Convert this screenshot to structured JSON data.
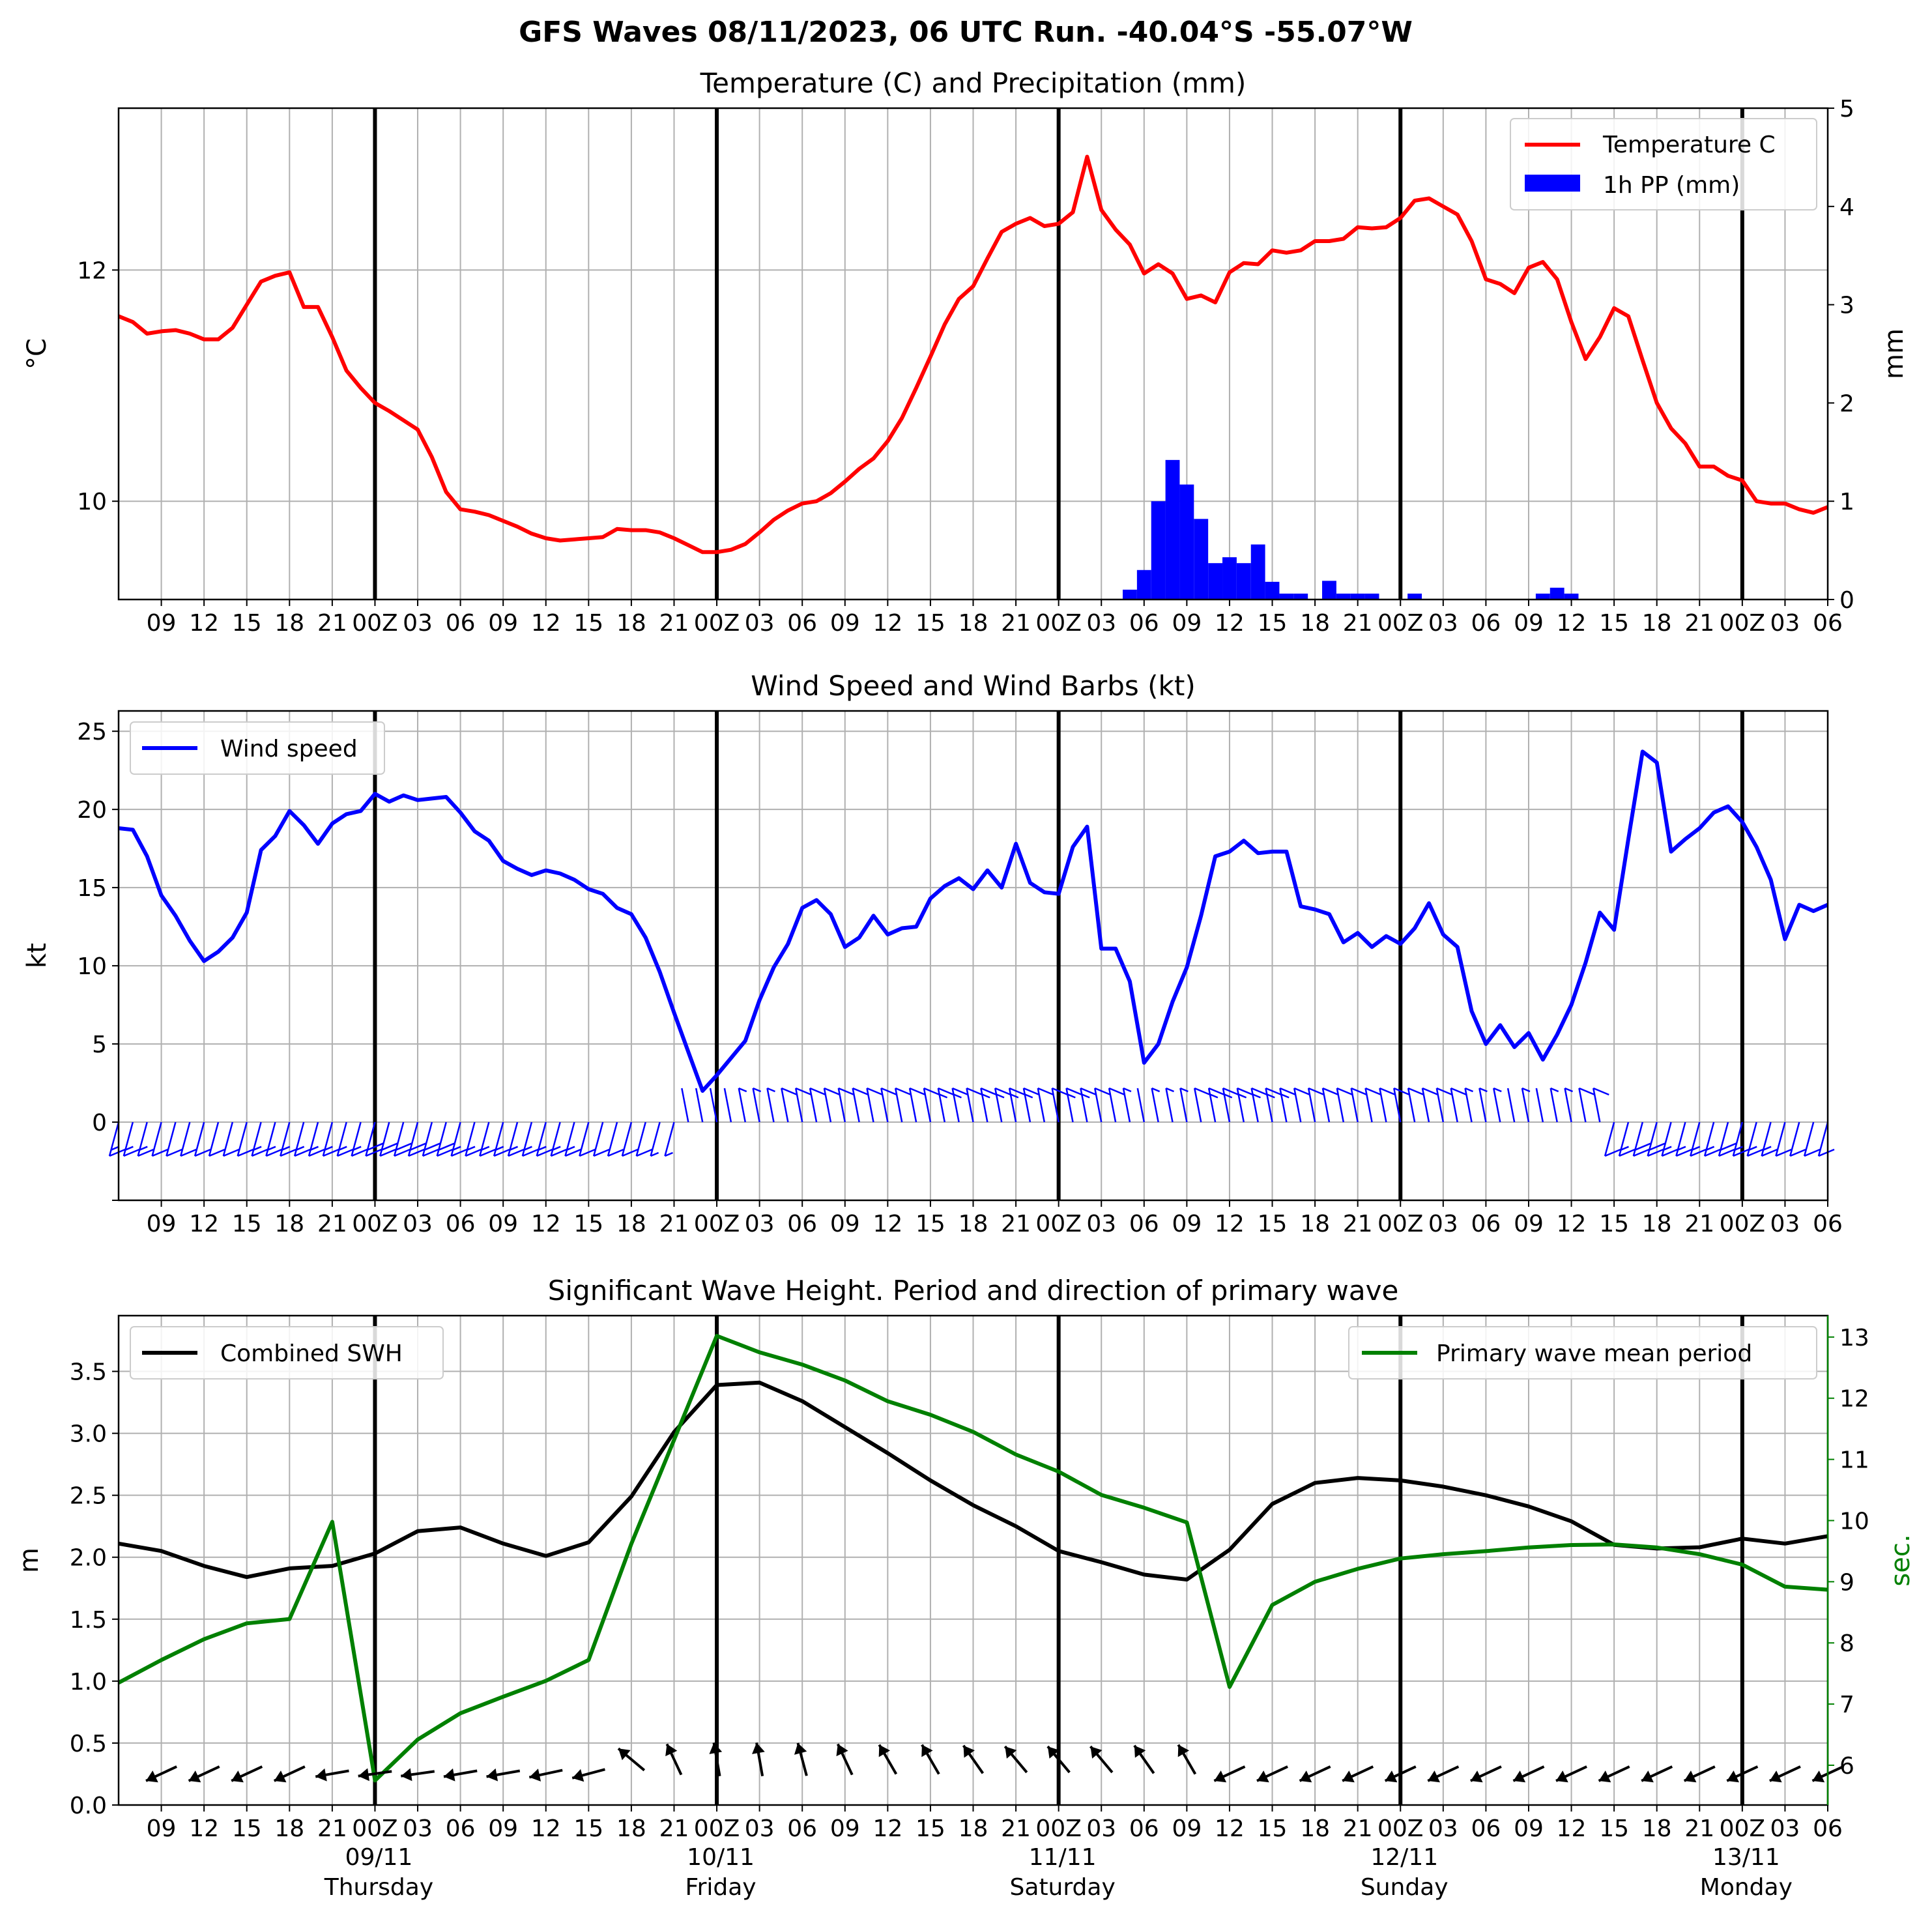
{
  "suptitle": "GFS Waves 08/11/2023, 06 UTC Run. -40.04°S -55.07°W",
  "hour_tick_labels": [
    "09",
    "12",
    "15",
    "18",
    "21",
    "00Z",
    "03",
    "06",
    "09",
    "12",
    "15",
    "18",
    "21",
    "00Z",
    "03",
    "06",
    "09",
    "12",
    "15",
    "18",
    "21",
    "00Z",
    "03",
    "06",
    "09",
    "12",
    "15",
    "18",
    "21",
    "00Z",
    "03",
    "06",
    "09",
    "12",
    "15",
    "18",
    "21",
    "00Z",
    "03",
    "06"
  ],
  "day_labels": [
    {
      "date": "09/11",
      "day": "Thursday"
    },
    {
      "date": "10/11",
      "day": "Friday"
    },
    {
      "date": "11/11",
      "day": "Saturday"
    },
    {
      "date": "12/11",
      "day": "Sunday"
    },
    {
      "date": "13/11",
      "day": "Monday"
    }
  ],
  "chart_data": [
    {
      "type": "line",
      "title": "Temperature (C) and Precipitation (mm)",
      "xlabel": "",
      "ylabel": "°C",
      "y2label": "mm",
      "x_unit": "hours since 08/11/2023 06 UTC",
      "xlim": [
        0,
        120
      ],
      "ylim": [
        9.15,
        13.4
      ],
      "y2lim": [
        0,
        5
      ],
      "yticks": [
        10,
        12
      ],
      "y2ticks": [
        0,
        1,
        2,
        3,
        4,
        5
      ],
      "legend_position": "top-right",
      "grid": true,
      "colors": {
        "temperature": "#ff0000",
        "precip": "#0000ff"
      },
      "series": [
        {
          "name": "Temperature C",
          "kind": "line",
          "x": [
            0,
            1,
            2,
            3,
            4,
            5,
            6,
            7,
            8,
            9,
            10,
            11,
            12,
            13,
            14,
            15,
            16,
            17,
            18,
            19,
            20,
            21,
            22,
            23,
            24,
            25,
            26,
            27,
            28,
            29,
            30,
            31,
            32,
            33,
            34,
            35,
            36,
            37,
            38,
            39,
            40,
            41,
            42,
            43,
            44,
            45,
            46,
            47,
            48,
            49,
            50,
            51,
            52,
            53,
            54,
            55,
            56,
            57,
            58,
            59,
            60,
            61,
            62,
            63,
            64,
            65,
            66,
            67,
            68,
            69,
            70,
            71,
            72,
            73,
            74,
            75,
            76,
            77,
            78,
            79,
            80,
            81,
            82,
            83,
            84,
            85,
            86,
            87,
            88,
            89,
            90,
            91,
            92,
            93,
            94,
            95,
            96,
            97,
            98,
            99,
            100,
            101,
            102,
            103,
            104,
            105,
            106,
            107,
            108,
            109,
            110,
            111,
            112,
            113,
            114,
            115,
            116,
            117,
            118,
            119,
            120
          ],
          "values": [
            11.6,
            11.55,
            11.45,
            11.47,
            11.48,
            11.45,
            11.4,
            11.4,
            11.5,
            11.7,
            11.9,
            11.95,
            11.98,
            11.68,
            11.68,
            11.42,
            11.13,
            10.98,
            10.85,
            10.78,
            10.7,
            10.62,
            10.38,
            10.08,
            9.93,
            9.91,
            9.88,
            9.83,
            9.78,
            9.72,
            9.68,
            9.66,
            9.67,
            9.68,
            9.69,
            9.76,
            9.75,
            9.75,
            9.73,
            9.68,
            9.62,
            9.56,
            9.56,
            9.58,
            9.63,
            9.73,
            9.84,
            9.92,
            9.98,
            10.0,
            10.07,
            10.17,
            10.28,
            10.37,
            10.52,
            10.72,
            10.98,
            11.25,
            11.53,
            11.75,
            11.86,
            12.1,
            12.33,
            12.4,
            12.45,
            12.38,
            12.4,
            12.5,
            12.98,
            12.52,
            12.35,
            12.22,
            11.97,
            12.05,
            11.97,
            11.75,
            11.78,
            11.72,
            11.98,
            12.06,
            12.05,
            12.17,
            12.15,
            12.17,
            12.25,
            12.25,
            12.27,
            12.37,
            12.36,
            12.37,
            12.45,
            12.6,
            12.62,
            12.55,
            12.48,
            12.25,
            11.92,
            11.88,
            11.8,
            12.02,
            12.07,
            11.92,
            11.55,
            11.23,
            11.42,
            11.67,
            11.6,
            11.22,
            10.85,
            10.63,
            10.5,
            10.3,
            10.3,
            10.22,
            10.18,
            10.0,
            9.98,
            9.98,
            9.93,
            9.9,
            9.95
          ]
        },
        {
          "name": "1h PP (mm)",
          "kind": "bar",
          "axis": "right",
          "x": [
            71,
            72,
            73,
            74,
            75,
            76,
            77,
            78,
            79,
            80,
            81,
            82,
            83,
            84,
            85,
            86,
            87,
            88,
            89,
            90,
            91,
            92,
            93,
            94,
            95,
            96,
            97,
            98,
            99,
            100,
            101,
            102,
            103,
            104,
            105,
            106,
            107,
            108,
            109,
            110,
            111,
            112,
            113,
            114,
            115,
            116,
            117,
            118,
            119,
            120
          ],
          "values": [
            0.1,
            0.3,
            1.0,
            1.42,
            1.17,
            0.82,
            0.37,
            0.43,
            0.37,
            0.56,
            0.18,
            0.06,
            0.06,
            0.0,
            0.19,
            0.06,
            0.06,
            0.06,
            0.0,
            0.0,
            0.06,
            0.0,
            0.0,
            0.0,
            0.0,
            0.0,
            0.0,
            0.0,
            0.0,
            0.06,
            0.12,
            0.06,
            0.0,
            0.0,
            0.0,
            0.0,
            0.0,
            0.0,
            0.0,
            0.0,
            0.0,
            0.0,
            0.0,
            0.0,
            0.0,
            0.0,
            0.0,
            0.0,
            0.0,
            0.0
          ]
        }
      ]
    },
    {
      "type": "line",
      "title": "Wind Speed and Wind Barbs (kt)",
      "xlabel": "",
      "ylabel": "kt",
      "x_unit": "hours since 08/11/2023 06 UTC",
      "xlim": [
        0,
        120
      ],
      "ylim": [
        -5,
        26.3
      ],
      "yticks": [
        0,
        5,
        10,
        15,
        20,
        25
      ],
      "legend_position": "top-left",
      "grid": true,
      "colors": {
        "wind": "#0000ff"
      },
      "series": [
        {
          "name": "Wind speed",
          "x": [
            0,
            1,
            2,
            3,
            4,
            5,
            6,
            7,
            8,
            9,
            10,
            11,
            12,
            13,
            14,
            15,
            16,
            17,
            18,
            19,
            20,
            21,
            22,
            23,
            24,
            25,
            26,
            27,
            28,
            29,
            30,
            31,
            32,
            33,
            34,
            35,
            36,
            37,
            38,
            39,
            40,
            41,
            42,
            43,
            44,
            45,
            46,
            47,
            48,
            49,
            50,
            51,
            52,
            53,
            54,
            55,
            56,
            57,
            58,
            59,
            60,
            61,
            62,
            63,
            64,
            65,
            66,
            67,
            68,
            69,
            70,
            71,
            72,
            73,
            74,
            75,
            76,
            77,
            78,
            79,
            80,
            81,
            82,
            83,
            84,
            85,
            86,
            87,
            88,
            89,
            90,
            91,
            92,
            93,
            94,
            95,
            96,
            97,
            98,
            99,
            100,
            101,
            102,
            103,
            104,
            105,
            106,
            107,
            108,
            109,
            110,
            111,
            112,
            113,
            114,
            115,
            116,
            117,
            118,
            119,
            120
          ],
          "values": [
            18.8,
            18.7,
            17.0,
            14.5,
            13.2,
            11.6,
            10.3,
            10.9,
            11.8,
            13.4,
            17.4,
            18.3,
            19.9,
            19.0,
            17.8,
            19.1,
            19.7,
            19.9,
            21.0,
            20.5,
            20.9,
            20.6,
            20.7,
            20.8,
            19.8,
            18.6,
            18.0,
            16.7,
            16.2,
            15.8,
            16.1,
            15.9,
            15.5,
            14.9,
            14.6,
            13.7,
            13.3,
            11.8,
            9.6,
            7.0,
            4.5,
            2.0,
            3.0,
            4.1,
            5.2,
            7.8,
            9.9,
            11.4,
            13.7,
            14.2,
            13.3,
            11.2,
            11.8,
            13.2,
            12.0,
            12.4,
            12.5,
            14.3,
            15.1,
            15.6,
            14.9,
            16.1,
            15.0,
            17.8,
            15.3,
            14.7,
            14.6,
            17.6,
            18.9,
            11.1,
            11.1,
            9.0,
            3.8,
            5.0,
            7.7,
            9.9,
            13.2,
            17.0,
            17.3,
            18.0,
            17.2,
            17.3,
            17.3,
            13.8,
            13.6,
            13.3,
            11.5,
            12.1,
            11.2,
            11.9,
            11.4,
            12.4,
            14.0,
            12.0,
            11.2,
            7.1,
            5.0,
            6.2,
            4.8,
            5.7,
            4.0,
            5.6,
            7.5,
            10.2,
            13.4,
            12.3,
            18.1,
            23.7,
            23.0,
            17.3,
            18.1,
            18.8,
            19.8,
            20.2,
            19.2,
            17.6,
            15.5,
            11.7,
            13.9,
            13.5,
            13.9
          ]
        }
      ]
    },
    {
      "type": "line",
      "title": "Significant Wave Height. Period and direction of primary wave",
      "xlabel": "",
      "ylabel": "m",
      "y2label": "sec.",
      "x_unit": "hours since 08/11/2023 06 UTC",
      "xlim": [
        0,
        120
      ],
      "ylim": [
        0,
        3.95
      ],
      "y2lim": [
        5.35,
        13.35
      ],
      "yticks": [
        0.0,
        0.5,
        1.0,
        1.5,
        2.0,
        2.5,
        3.0,
        3.5
      ],
      "y2ticks": [
        6,
        7,
        8,
        9,
        10,
        11,
        12,
        13
      ],
      "grid": true,
      "colors": {
        "swh": "#000000",
        "period": "#008000"
      },
      "series": [
        {
          "name": "Combined SWH",
          "legend_position": "top-left",
          "x": [
            0,
            3,
            6,
            9,
            12,
            15,
            18,
            21,
            24,
            27,
            30,
            33,
            36,
            39,
            42,
            45,
            48,
            51,
            54,
            57,
            60,
            63,
            66,
            69,
            72,
            75,
            78,
            81,
            84,
            87,
            90,
            93,
            96,
            99,
            102,
            105,
            108,
            111,
            114,
            117,
            120
          ],
          "values": [
            2.11,
            2.05,
            1.93,
            1.84,
            1.91,
            1.93,
            2.03,
            2.21,
            2.24,
            2.11,
            2.01,
            2.12,
            2.49,
            3.01,
            3.39,
            3.41,
            3.26,
            3.05,
            2.84,
            2.62,
            2.42,
            2.25,
            2.05,
            1.96,
            1.86,
            1.82,
            2.06,
            2.43,
            2.6,
            2.64,
            2.62,
            2.57,
            2.5,
            2.41,
            2.29,
            2.1,
            2.07,
            2.08,
            2.15,
            2.11,
            2.17
          ]
        },
        {
          "name": "Primary wave mean period",
          "legend_position": "top-right",
          "axis": "right",
          "x": [
            0,
            3,
            6,
            9,
            12,
            15,
            18,
            21,
            24,
            27,
            30,
            33,
            36,
            39,
            42,
            45,
            48,
            51,
            54,
            57,
            60,
            63,
            66,
            69,
            72,
            75,
            78,
            81,
            84,
            87,
            90,
            93,
            96,
            99,
            102,
            105,
            108,
            111,
            114,
            117,
            120
          ],
          "values": [
            7.35,
            7.72,
            8.06,
            8.32,
            8.39,
            9.98,
            5.75,
            6.42,
            6.85,
            7.12,
            7.38,
            7.72,
            9.62,
            11.32,
            13.02,
            12.75,
            12.55,
            12.29,
            11.95,
            11.73,
            11.45,
            11.08,
            10.8,
            10.42,
            10.21,
            9.97,
            7.28,
            8.62,
            9.0,
            9.21,
            9.38,
            9.45,
            9.5,
            9.56,
            9.6,
            9.61,
            9.56,
            9.45,
            9.28,
            8.92,
            8.87
          ]
        },
        {
          "name": "Primary wave direction",
          "kind": "arrows",
          "unit": "degrees (direction arrow points)",
          "x": [
            3,
            6,
            9,
            12,
            15,
            18,
            21,
            24,
            27,
            30,
            33,
            36,
            39,
            42,
            45,
            48,
            51,
            54,
            57,
            60,
            63,
            66,
            69,
            72,
            75,
            78,
            81,
            84,
            87,
            90,
            93,
            96,
            99,
            102,
            105,
            108,
            111,
            114,
            117,
            120
          ],
          "values": [
            245,
            245,
            245,
            245,
            260,
            262,
            262,
            260,
            260,
            258,
            255,
            310,
            335,
            350,
            350,
            345,
            335,
            330,
            330,
            325,
            320,
            320,
            320,
            325,
            330,
            245,
            245,
            245,
            245,
            245,
            245,
            245,
            245,
            245,
            245,
            245,
            245,
            245,
            245,
            245
          ]
        }
      ]
    }
  ]
}
